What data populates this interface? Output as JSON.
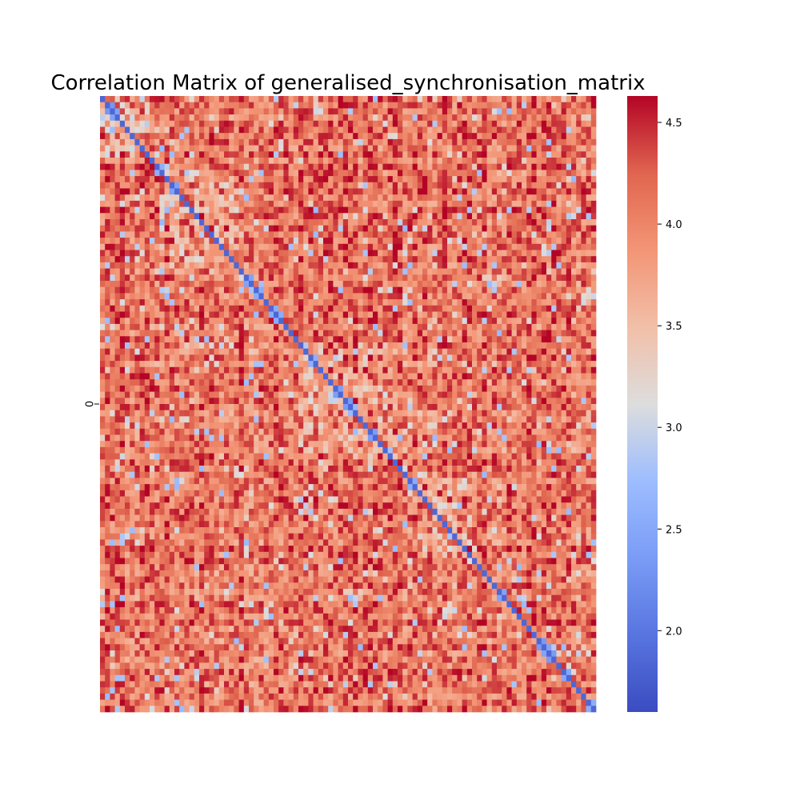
{
  "chart_data": {
    "type": "heatmap",
    "title": "Correlation Matrix of generalised_synchronisation_matrix",
    "n": 100,
    "y_tick_labels": [
      "0"
    ],
    "vmin": 1.6,
    "vmax": 4.63,
    "colormap": "coolwarm",
    "colorbar": {
      "ticks": [
        "2.0",
        "2.5",
        "3.0",
        "3.5",
        "4.0",
        "4.5"
      ]
    },
    "diagonal_value": 1.85,
    "off_diagonal_typical_range": [
      3.3,
      4.6
    ],
    "light_blocks": [
      {
        "rows": [
          0,
          10
        ],
        "cols": [
          0,
          10
        ],
        "value": 3.4
      },
      {
        "rows": [
          12,
          28
        ],
        "cols": [
          12,
          28
        ],
        "value": 3.6
      },
      {
        "rows": [
          40,
          60
        ],
        "cols": [
          40,
          60
        ],
        "value": 3.7
      },
      {
        "rows": [
          62,
          75
        ],
        "cols": [
          62,
          75
        ],
        "value": 3.6
      }
    ]
  },
  "colors": {
    "low": "#3b4cc0",
    "mid": "#dddddd",
    "high": "#b40426"
  }
}
